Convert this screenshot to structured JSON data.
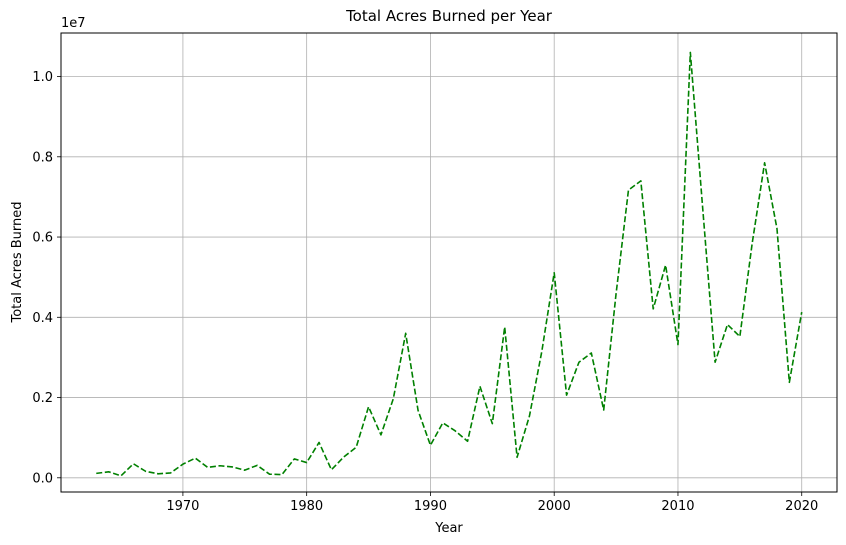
{
  "chart_data": {
    "type": "line",
    "title": "Total Acres Burned per Year",
    "xlabel": "Year",
    "ylabel": "Total Acres Burned",
    "y_offset_label": "1e7",
    "xlim": [
      1960.15,
      2022.85
    ],
    "ylim": [
      -0.0354,
      1.1085
    ],
    "y_unit_multiplier": 10000000,
    "grid": true,
    "x_ticks": [
      1970,
      1980,
      1990,
      2000,
      2010,
      2020
    ],
    "x_tick_labels": [
      "1970",
      "1980",
      "1990",
      "2000",
      "2010",
      "2020"
    ],
    "y_ticks": [
      0.0,
      0.2,
      0.4,
      0.6,
      0.8,
      1.0
    ],
    "y_tick_labels": [
      "0.0",
      "0.2",
      "0.4",
      "0.6",
      "0.8",
      "1.0"
    ],
    "series": [
      {
        "color": "#008000",
        "line_style": "dashed",
        "x": [
          1963,
          1964,
          1965,
          1966,
          1967,
          1968,
          1969,
          1970,
          1971,
          1972,
          1973,
          1974,
          1975,
          1976,
          1977,
          1978,
          1979,
          1980,
          1981,
          1982,
          1983,
          1984,
          1985,
          1986,
          1987,
          1988,
          1989,
          1990,
          1991,
          1992,
          1993,
          1994,
          1995,
          1996,
          1997,
          1998,
          1999,
          2000,
          2001,
          2002,
          2003,
          2004,
          2005,
          2006,
          2007,
          2008,
          2009,
          2010,
          2011,
          2012,
          2013,
          2014,
          2015,
          2016,
          2017,
          2018,
          2019,
          2020
        ],
        "y": [
          0.011,
          0.015,
          0.005,
          0.035,
          0.016,
          0.01,
          0.012,
          0.034,
          0.049,
          0.026,
          0.03,
          0.027,
          0.019,
          0.031,
          0.009,
          0.008,
          0.047,
          0.038,
          0.088,
          0.02,
          0.052,
          0.076,
          0.177,
          0.107,
          0.197,
          0.36,
          0.168,
          0.081,
          0.137,
          0.117,
          0.091,
          0.228,
          0.135,
          0.376,
          0.051,
          0.154,
          0.315,
          0.511,
          0.206,
          0.288,
          0.311,
          0.169,
          0.459,
          0.717,
          0.74,
          0.421,
          0.53,
          0.332,
          1.06,
          0.671,
          0.288,
          0.382,
          0.352,
          0.585,
          0.785,
          0.621,
          0.238,
          0.413
        ]
      }
    ]
  }
}
